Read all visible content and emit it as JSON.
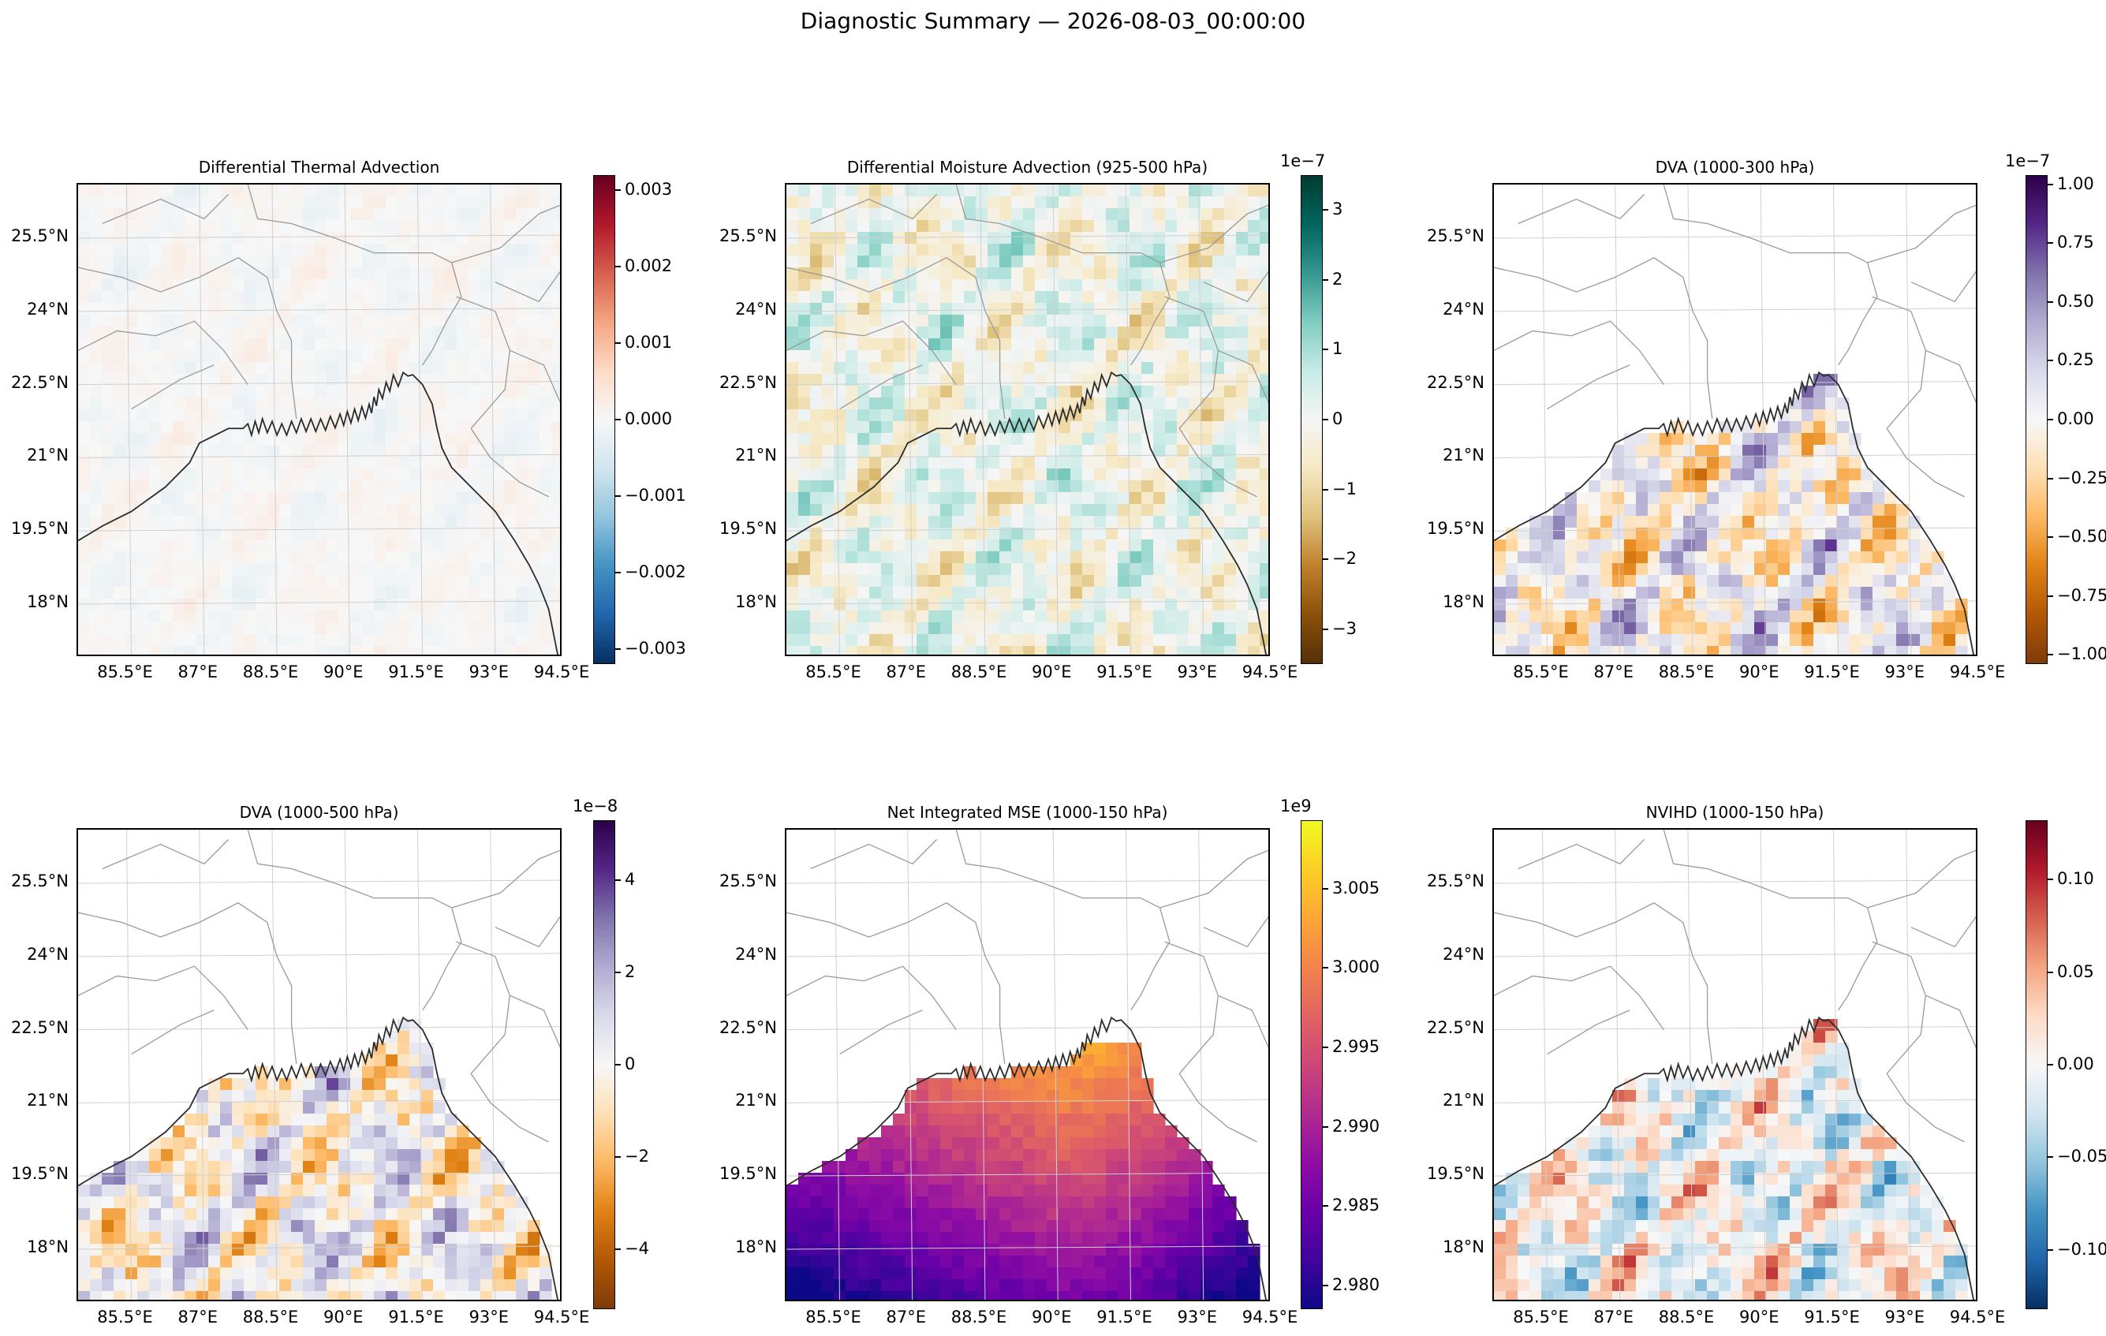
{
  "figure": {
    "suptitle": "Diagnostic Summary — 2026-08-03_00:00:00"
  },
  "map_axes": {
    "lat_labels": [
      "25.5°N",
      "24°N",
      "22.5°N",
      "21°N",
      "19.5°N",
      "18°N"
    ],
    "lat_values": [
      25.5,
      24,
      22.5,
      21,
      19.5,
      18
    ],
    "lon_labels": [
      "85.5°E",
      "87°E",
      "88.5°E",
      "90°E",
      "91.5°E",
      "93°E",
      "94.5°E"
    ],
    "lon_values": [
      85.5,
      87,
      88.5,
      90,
      91.5,
      93,
      94.5
    ],
    "lon_range": [
      84.5,
      94.5
    ],
    "lat_range": [
      16.9,
      26.6
    ],
    "gridlines": true
  },
  "chart_data": [
    {
      "type": "heatmap",
      "title": "Differential Thermal Advection",
      "colormap": "RdBu_r",
      "cbar_ticks": [
        "0.003",
        "0.002",
        "0.001",
        "0.000",
        "−0.001",
        "−0.002",
        "−0.003"
      ],
      "cbar_values": [
        0.003,
        0.002,
        0.001,
        0.0,
        -0.001,
        -0.002,
        -0.003
      ],
      "vmin": -0.0032,
      "vmax": 0.0032,
      "exponent": "",
      "coverage": "full domain"
    },
    {
      "type": "heatmap",
      "title": "Differential Moisture Advection (925-500 hPa)",
      "colormap": "BrBG",
      "cbar_ticks": [
        "3",
        "2",
        "1",
        "0",
        "−1",
        "−2",
        "−3"
      ],
      "cbar_values": [
        3,
        2,
        1,
        0,
        -1,
        -2,
        -3
      ],
      "vmin": -3.5,
      "vmax": 3.5,
      "exponent": "1e−7",
      "coverage": "full domain"
    },
    {
      "type": "heatmap",
      "title": "DVA (1000-300 hPa)",
      "colormap": "PuOr",
      "cbar_ticks": [
        "1.00",
        "0.75",
        "0.50",
        "0.25",
        "0.00",
        "−0.25",
        "−0.50",
        "−0.75",
        "−1.00"
      ],
      "cbar_values": [
        1.0,
        0.75,
        0.5,
        0.25,
        0.0,
        -0.25,
        -0.5,
        -0.75,
        -1.0
      ],
      "vmin": -1.04,
      "vmax": 1.04,
      "exponent": "1e−7",
      "coverage": "ocean"
    },
    {
      "type": "heatmap",
      "title": "DVA (1000-500 hPa)",
      "colormap": "PuOr",
      "cbar_ticks": [
        "4",
        "2",
        "0",
        "−2",
        "−4"
      ],
      "cbar_values": [
        4,
        2,
        0,
        -2,
        -4
      ],
      "vmin": -5.3,
      "vmax": 5.3,
      "exponent": "1e−8",
      "coverage": "ocean"
    },
    {
      "type": "heatmap",
      "title": "Net Integrated MSE (1000-150 hPa)",
      "colormap": "plasma",
      "cbar_ticks": [
        "3.005",
        "3.000",
        "2.995",
        "2.990",
        "2.985",
        "2.980"
      ],
      "cbar_values": [
        3.005,
        3.0,
        2.995,
        2.99,
        2.985,
        2.98
      ],
      "vmin": 2.9785,
      "vmax": 3.0093,
      "exponent": "1e9",
      "coverage": "ocean"
    },
    {
      "type": "heatmap",
      "title": "NVIHD (1000-150 hPa)",
      "colormap": "RdBu_r",
      "cbar_ticks": [
        "0.10",
        "0.05",
        "0.00",
        "−0.05",
        "−0.10"
      ],
      "cbar_values": [
        0.1,
        0.05,
        0.0,
        -0.05,
        -0.1
      ],
      "vmin": -0.132,
      "vmax": 0.132,
      "exponent": "",
      "coverage": "ocean"
    }
  ]
}
